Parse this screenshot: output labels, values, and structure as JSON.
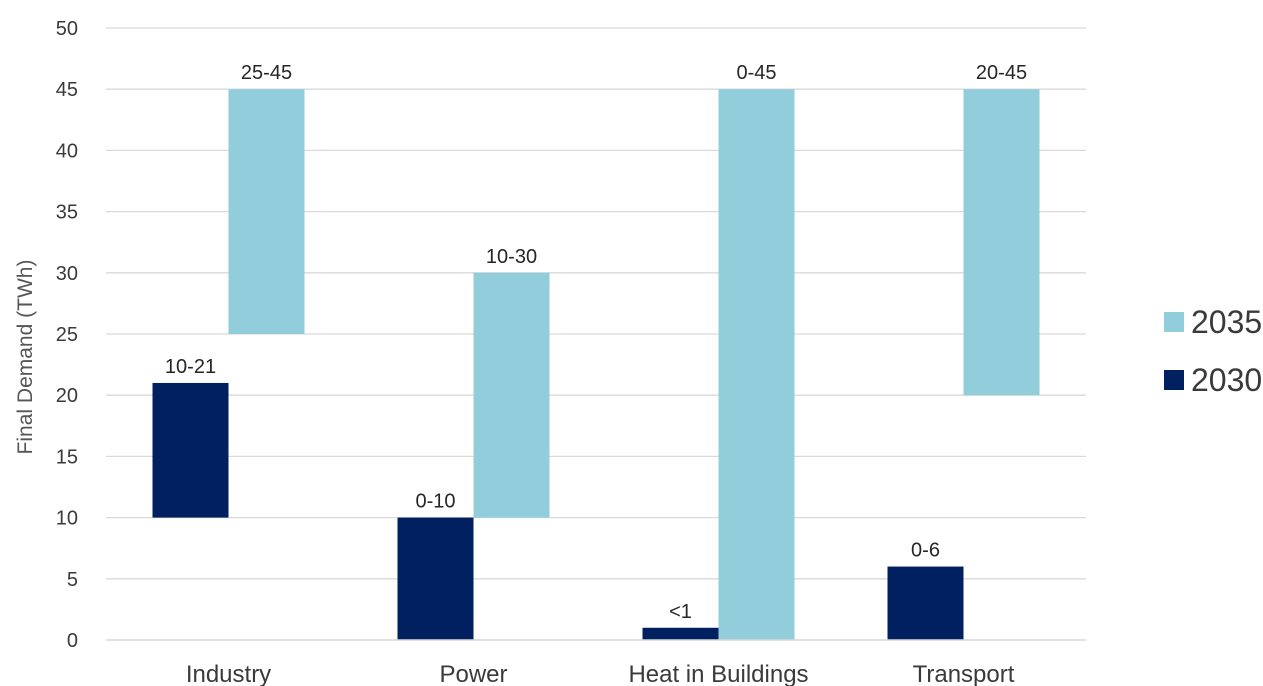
{
  "chart_data": {
    "type": "bar",
    "subtype": "floating-range",
    "title": "",
    "xlabel": "",
    "ylabel": "Final Demand (TWh)",
    "ylim": [
      0,
      50
    ],
    "yticks": [
      0,
      5,
      10,
      15,
      20,
      25,
      30,
      35,
      40,
      45,
      50
    ],
    "grid": true,
    "legend_position": "right",
    "categories": [
      "Industry",
      "Power",
      "Heat in Buildings",
      "Transport"
    ],
    "series": [
      {
        "name": "2030",
        "color": "#002060",
        "ranges": [
          [
            10,
            21
          ],
          [
            0,
            10
          ],
          [
            0,
            1
          ],
          [
            0,
            6
          ]
        ],
        "labels": [
          "10-21",
          "0-10",
          "<1",
          "0-6"
        ]
      },
      {
        "name": "2035",
        "color": "#92CDDC",
        "ranges": [
          [
            25,
            45
          ],
          [
            10,
            30
          ],
          [
            0,
            45
          ],
          [
            20,
            45
          ]
        ],
        "labels": [
          "25-45",
          "10-30",
          "0-45",
          "20-45"
        ]
      }
    ],
    "legend_order": [
      "2035",
      "2030"
    ]
  }
}
